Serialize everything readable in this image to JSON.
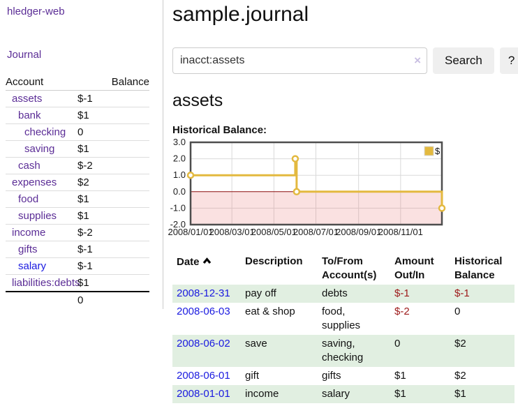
{
  "sidebar": {
    "brand": "hledger-web",
    "nav": {
      "journal": "Journal"
    },
    "accounts_table": {
      "headers": {
        "account": "Account",
        "balance": "Balance"
      },
      "rows": [
        {
          "name": "assets",
          "balance": "$-1"
        },
        {
          "name": "bank",
          "balance": "$1"
        },
        {
          "name": "checking",
          "balance": "0"
        },
        {
          "name": "saving",
          "balance": "$1"
        },
        {
          "name": "cash",
          "balance": "$-2"
        },
        {
          "name": "expenses",
          "balance": "$2"
        },
        {
          "name": "food",
          "balance": "$1"
        },
        {
          "name": "supplies",
          "balance": "$1"
        },
        {
          "name": "income",
          "balance": "$-2"
        },
        {
          "name": "gifts",
          "balance": "$-1"
        },
        {
          "name": "salary",
          "balance": "$-1"
        },
        {
          "name": "liabilities:debts",
          "balance": "$1"
        }
      ],
      "total": "0"
    }
  },
  "header": {
    "title": "sample.journal"
  },
  "search": {
    "value": "inacct:assets",
    "clear_icon": "×",
    "button_label": "Search",
    "help_label": "?"
  },
  "account_page": {
    "title": "assets",
    "chart_label": "Historical Balance:"
  },
  "chart_data": {
    "type": "line",
    "step": true,
    "title": "Historical Balance:",
    "legend_position": "top-right",
    "x_range": [
      "2008-01-01",
      "2008-12-31"
    ],
    "ylim": [
      -2,
      3
    ],
    "series": [
      {
        "name": "$",
        "color": "#e3b93f",
        "points": [
          {
            "x": "2008-01-01",
            "y": 1
          },
          {
            "x": "2008-06-01",
            "y": 2
          },
          {
            "x": "2008-06-03",
            "y": 0
          },
          {
            "x": "2008-12-31",
            "y": -1
          }
        ]
      }
    ],
    "yticks": [
      {
        "label": "3.0",
        "value": 3
      },
      {
        "label": "2.0",
        "value": 2
      },
      {
        "label": "1.0",
        "value": 1
      },
      {
        "label": "0.0",
        "value": 0
      },
      {
        "label": "-1.0",
        "value": -1
      },
      {
        "label": "-2.0",
        "value": -2
      }
    ],
    "xticks": [
      {
        "label": "2008/01/01",
        "date": "2008-01-01"
      },
      {
        "label": "2008/03/01",
        "date": "2008-03-01"
      },
      {
        "label": "2008/05/01",
        "date": "2008-05-01"
      },
      {
        "label": "2008/07/01",
        "date": "2008-07-01"
      },
      {
        "label": "2008/09/01",
        "date": "2008-09-01"
      },
      {
        "label": "2008/11/01",
        "date": "2008-11-01"
      }
    ],
    "colors": {
      "grid": "#d9d9d9",
      "border": "#4d4d4d",
      "zero_line": "#8c0d0d",
      "negative_region": "rgba(230,120,120,0.22)",
      "marker_fill": "#ffffff"
    }
  },
  "register": {
    "headers": {
      "date": "Date",
      "description": "Description",
      "accounts": "To/From Account(s)",
      "amount": "Amount Out/In",
      "balance": "Historical Balance"
    },
    "rows": [
      {
        "date": "2008-12-31",
        "description": "pay off",
        "accounts": "debts",
        "amount": "$-1",
        "balance": "$-1"
      },
      {
        "date": "2008-06-03",
        "description": "eat & shop",
        "accounts": "food, supplies",
        "amount": "$-2",
        "balance": "0"
      },
      {
        "date": "2008-06-02",
        "description": "save",
        "accounts": "saving, checking",
        "amount": "0",
        "balance": "$2"
      },
      {
        "date": "2008-06-01",
        "description": "gift",
        "accounts": "gifts",
        "amount": "$1",
        "balance": "$2"
      },
      {
        "date": "2008-01-01",
        "description": "income",
        "accounts": "salary",
        "amount": "$1",
        "balance": "$1"
      }
    ]
  },
  "theme": {
    "link_purple": "#5b2d96",
    "link_blue": "#1a1ae0",
    "negative_strong": "#9d1a1a",
    "negative_soft": "#b96b6b",
    "row_green": "#e1efe1",
    "series_gold": "#e3b93f"
  }
}
